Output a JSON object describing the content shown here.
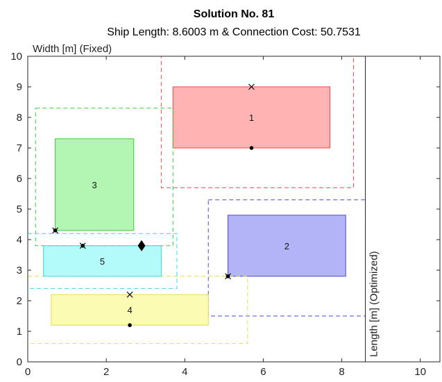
{
  "chart_data": {
    "type": "layout-plot",
    "title": "Solution No. 81",
    "subtitle": "Ship Length: 8.6003 m  &  Connection Cost: 50.7531",
    "xlim": [
      0,
      10.5
    ],
    "ylim": [
      0,
      10
    ],
    "xticks": [
      0,
      2,
      4,
      6,
      8,
      10
    ],
    "yticks": [
      0,
      1,
      2,
      3,
      4,
      5,
      6,
      7,
      8,
      9,
      10
    ],
    "grid": false,
    "width_label": "Width [m] (Fixed)",
    "length_label": "Length [m] (Optimized)",
    "ship_length": 8.6003,
    "blocks": [
      {
        "id": "1",
        "x0": 3.7,
        "x1": 7.7,
        "y0": 7.0,
        "y1": 9.0,
        "bx0": 3.4,
        "bx1": 8.3,
        "by0": 5.7,
        "by1": 10.0,
        "fill": "#ffb3b3",
        "stroke": "#e8474a"
      },
      {
        "id": "2",
        "x0": 5.1,
        "x1": 8.1,
        "y0": 2.8,
        "y1": 4.8,
        "bx0": 4.6,
        "bx1": 8.6,
        "by0": 1.5,
        "by1": 5.3,
        "fill": "#b3b3f7",
        "stroke": "#4a4ad9"
      },
      {
        "id": "3",
        "x0": 0.7,
        "x1": 2.7,
        "y0": 4.3,
        "y1": 7.3,
        "bx0": 0.2,
        "bx1": 3.7,
        "by0": 3.8,
        "by1": 8.3,
        "fill": "#b3f5b3",
        "stroke": "#3cc93c"
      },
      {
        "id": "4",
        "x0": 0.6,
        "x1": 4.6,
        "y0": 1.2,
        "y1": 2.2,
        "bx0": 0.0,
        "bx1": 5.6,
        "by0": 0.6,
        "by1": 2.8,
        "fill": "#fbfbb3",
        "stroke": "#e0e040"
      },
      {
        "id": "5",
        "x0": 0.4,
        "x1": 3.4,
        "y0": 2.8,
        "y1": 3.8,
        "bx0": 0.0,
        "bx1": 3.8,
        "by0": 2.4,
        "by1": 4.2,
        "fill": "#b3fbfb",
        "stroke": "#3ad6e0"
      }
    ],
    "markers": [
      {
        "type": "x",
        "x": 5.7,
        "y": 9.0
      },
      {
        "type": "dot",
        "x": 5.7,
        "y": 7.0
      },
      {
        "type": "x",
        "x": 0.7,
        "y": 4.3
      },
      {
        "type": "dot",
        "x": 0.7,
        "y": 4.3
      },
      {
        "type": "x",
        "x": 1.4,
        "y": 3.8
      },
      {
        "type": "dot",
        "x": 1.4,
        "y": 3.8
      },
      {
        "type": "diamond",
        "x": 2.9,
        "y": 3.8
      },
      {
        "type": "x",
        "x": 2.6,
        "y": 2.2
      },
      {
        "type": "dot",
        "x": 2.6,
        "y": 1.2
      },
      {
        "type": "x",
        "x": 5.1,
        "y": 2.8
      },
      {
        "type": "dot",
        "x": 5.1,
        "y": 2.8
      }
    ]
  }
}
